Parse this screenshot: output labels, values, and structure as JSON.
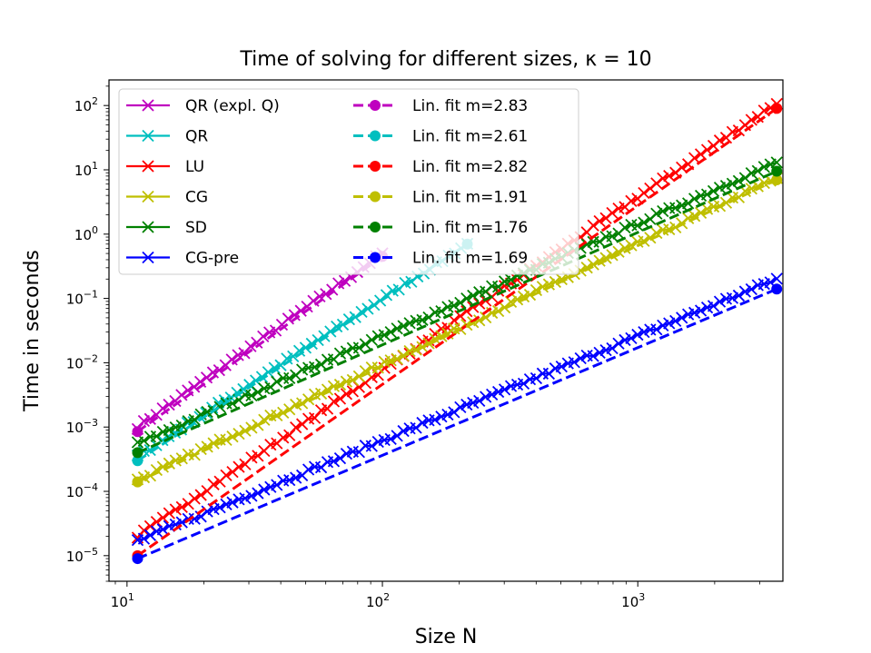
{
  "chart_data": {
    "type": "line",
    "title": "Time of solving for different sizes, κ = 10",
    "xlabel": "Size N",
    "ylabel": "Time in seconds",
    "xscale": "log",
    "yscale": "log",
    "xlim": [
      8.5,
      3700
    ],
    "ylim": [
      4e-06,
      250
    ],
    "xticks": [
      {
        "value": 10,
        "label": "10^1"
      },
      {
        "value": 100,
        "label": "10^2"
      },
      {
        "value": 1000,
        "label": "10^3"
      }
    ],
    "yticks": [
      {
        "value": 1e-05,
        "label": "10^-5"
      },
      {
        "value": 0.0001,
        "label": "10^-4"
      },
      {
        "value": 0.001,
        "label": "10^-3"
      },
      {
        "value": 0.01,
        "label": "10^-2"
      },
      {
        "value": 0.1,
        "label": "10^-1"
      },
      {
        "value": 1,
        "label": "10^0"
      },
      {
        "value": 10,
        "label": "10^1"
      },
      {
        "value": 100,
        "label": "10^2"
      }
    ],
    "legend_position": "top-left",
    "legend_columns": 2,
    "series": [
      {
        "name": "QR (expl. Q)",
        "color": "#bf00bf",
        "marker": "x",
        "style": "solid",
        "x_range": [
          11,
          100
        ],
        "y_start": 0.001,
        "y_end": 0.5
      },
      {
        "name": "QR",
        "color": "#00bfbf",
        "marker": "x",
        "style": "solid",
        "x_range": [
          11,
          215
        ],
        "y_start": 0.00035,
        "y_end": 0.7
      },
      {
        "name": "LU",
        "color": "#ff0000",
        "marker": "x",
        "style": "solid",
        "x_range": [
          11,
          3500
        ],
        "y_start": 2e-05,
        "y_end": 110
      },
      {
        "name": "CG",
        "color": "#bfbf00",
        "marker": "x",
        "style": "solid",
        "x_range": [
          11,
          3500
        ],
        "y_start": 0.00015,
        "y_end": 7.5
      },
      {
        "name": "SD",
        "color": "#008000",
        "marker": "x",
        "style": "solid",
        "x_range": [
          11,
          3500
        ],
        "y_start": 0.00055,
        "y_end": 13
      },
      {
        "name": "CG-pre",
        "color": "#0000ff",
        "marker": "x",
        "style": "solid",
        "x_range": [
          11,
          3500
        ],
        "y_start": 1.7e-05,
        "y_end": 0.2
      },
      {
        "name": "Lin. fit m=2.83",
        "color": "#bf00bf",
        "marker": "o",
        "style": "dashed",
        "x_range": [
          11,
          100
        ],
        "y_start": 0.00085,
        "y_end": 0.45
      },
      {
        "name": "Lin. fit m=2.61",
        "color": "#00bfbf",
        "marker": "o",
        "style": "dashed",
        "x_range": [
          11,
          215
        ],
        "y_start": 0.0003,
        "y_end": 0.7
      },
      {
        "name": "Lin. fit m=2.82",
        "color": "#ff0000",
        "marker": "o",
        "style": "dashed",
        "x_range": [
          11,
          3500
        ],
        "y_start": 1e-05,
        "y_end": 90
      },
      {
        "name": "Lin. fit m=1.91",
        "color": "#bfbf00",
        "marker": "o",
        "style": "dashed",
        "x_range": [
          11,
          3500
        ],
        "y_start": 0.00014,
        "y_end": 7.0
      },
      {
        "name": "Lin. fit m=1.76",
        "color": "#008000",
        "marker": "o",
        "style": "dashed",
        "x_range": [
          11,
          3500
        ],
        "y_start": 0.0004,
        "y_end": 9.5
      },
      {
        "name": "Lin. fit m=1.69",
        "color": "#0000ff",
        "marker": "o",
        "style": "dashed",
        "x_range": [
          11,
          3500
        ],
        "y_start": 9e-06,
        "y_end": 0.14
      }
    ]
  }
}
